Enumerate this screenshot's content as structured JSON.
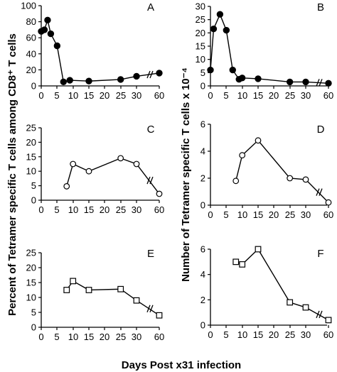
{
  "figure": {
    "xlabel": "Days Post x31 infection",
    "ylabel_left": "Percent of Tetramer  specific T cells among CD8⁺ T cells",
    "ylabel_right": "Number of Tetramer  specific T cells x 10⁻⁴"
  },
  "chart_data": [
    {
      "type": "line",
      "panel_label": "A",
      "marker": "filled-circle",
      "x_ticks": [
        "0",
        "5",
        "10",
        "15",
        "20",
        "25",
        "30",
        "60"
      ],
      "y_ticks": [
        "0",
        "20",
        "40",
        "60",
        "80",
        "100"
      ],
      "ylim": [
        0,
        100
      ],
      "x": [
        0,
        1,
        2,
        3,
        5,
        7,
        9,
        15,
        25,
        30,
        60
      ],
      "y": [
        68,
        70,
        82,
        65,
        50,
        5,
        7,
        6,
        8,
        12,
        16
      ]
    },
    {
      "type": "line",
      "panel_label": "B",
      "marker": "filled-circle",
      "x_ticks": [
        "0",
        "5",
        "10",
        "15",
        "20",
        "25",
        "30",
        "60"
      ],
      "y_ticks": [
        "0",
        "5",
        "10",
        "15",
        "20",
        "25",
        "30"
      ],
      "ylim": [
        0,
        30
      ],
      "x": [
        0,
        1,
        3,
        5,
        7,
        9,
        10,
        15,
        25,
        30,
        60
      ],
      "y": [
        6,
        21.5,
        27,
        21,
        6,
        2.5,
        3,
        2.7,
        1.5,
        1.5,
        1.0
      ]
    },
    {
      "type": "line",
      "panel_label": "C",
      "marker": "open-circle",
      "x_ticks": [
        "0",
        "5",
        "10",
        "15",
        "20",
        "25",
        "30",
        "60"
      ],
      "y_ticks": [
        "0",
        "5",
        "10",
        "15",
        "20",
        "25"
      ],
      "ylim": [
        0,
        25
      ],
      "x": [
        8,
        10,
        15,
        25,
        30,
        60
      ],
      "y": [
        4.8,
        12.5,
        10,
        14.5,
        12.5,
        2.2
      ]
    },
    {
      "type": "line",
      "panel_label": "D",
      "marker": "open-circle",
      "x_ticks": [
        "0",
        "5",
        "10",
        "15",
        "20",
        "25",
        "30",
        "60"
      ],
      "y_ticks": [
        "0",
        "2",
        "4",
        "6"
      ],
      "ylim": [
        0,
        6
      ],
      "x": [
        8,
        10,
        15,
        25,
        30,
        60
      ],
      "y": [
        1.8,
        3.7,
        4.8,
        2.0,
        1.9,
        0.2
      ]
    },
    {
      "type": "line",
      "panel_label": "E",
      "marker": "open-square",
      "x_ticks": [
        "0",
        "5",
        "10",
        "15",
        "20",
        "25",
        "30",
        "60"
      ],
      "y_ticks": [
        "0",
        "5",
        "10",
        "15",
        "20",
        "25"
      ],
      "ylim": [
        0,
        25
      ],
      "x": [
        8,
        10,
        15,
        25,
        30,
        60
      ],
      "y": [
        12.5,
        15.5,
        12.5,
        12.8,
        9.0,
        4.0
      ]
    },
    {
      "type": "line",
      "panel_label": "F",
      "marker": "open-square",
      "x_ticks": [
        "0",
        "5",
        "10",
        "15",
        "20",
        "25",
        "30",
        "60"
      ],
      "y_ticks": [
        "0",
        "2",
        "4",
        "6"
      ],
      "ylim": [
        0,
        6
      ],
      "x": [
        8,
        10,
        15,
        25,
        30,
        60
      ],
      "y": [
        5.0,
        4.8,
        6.0,
        1.8,
        1.4,
        0.4
      ]
    }
  ]
}
